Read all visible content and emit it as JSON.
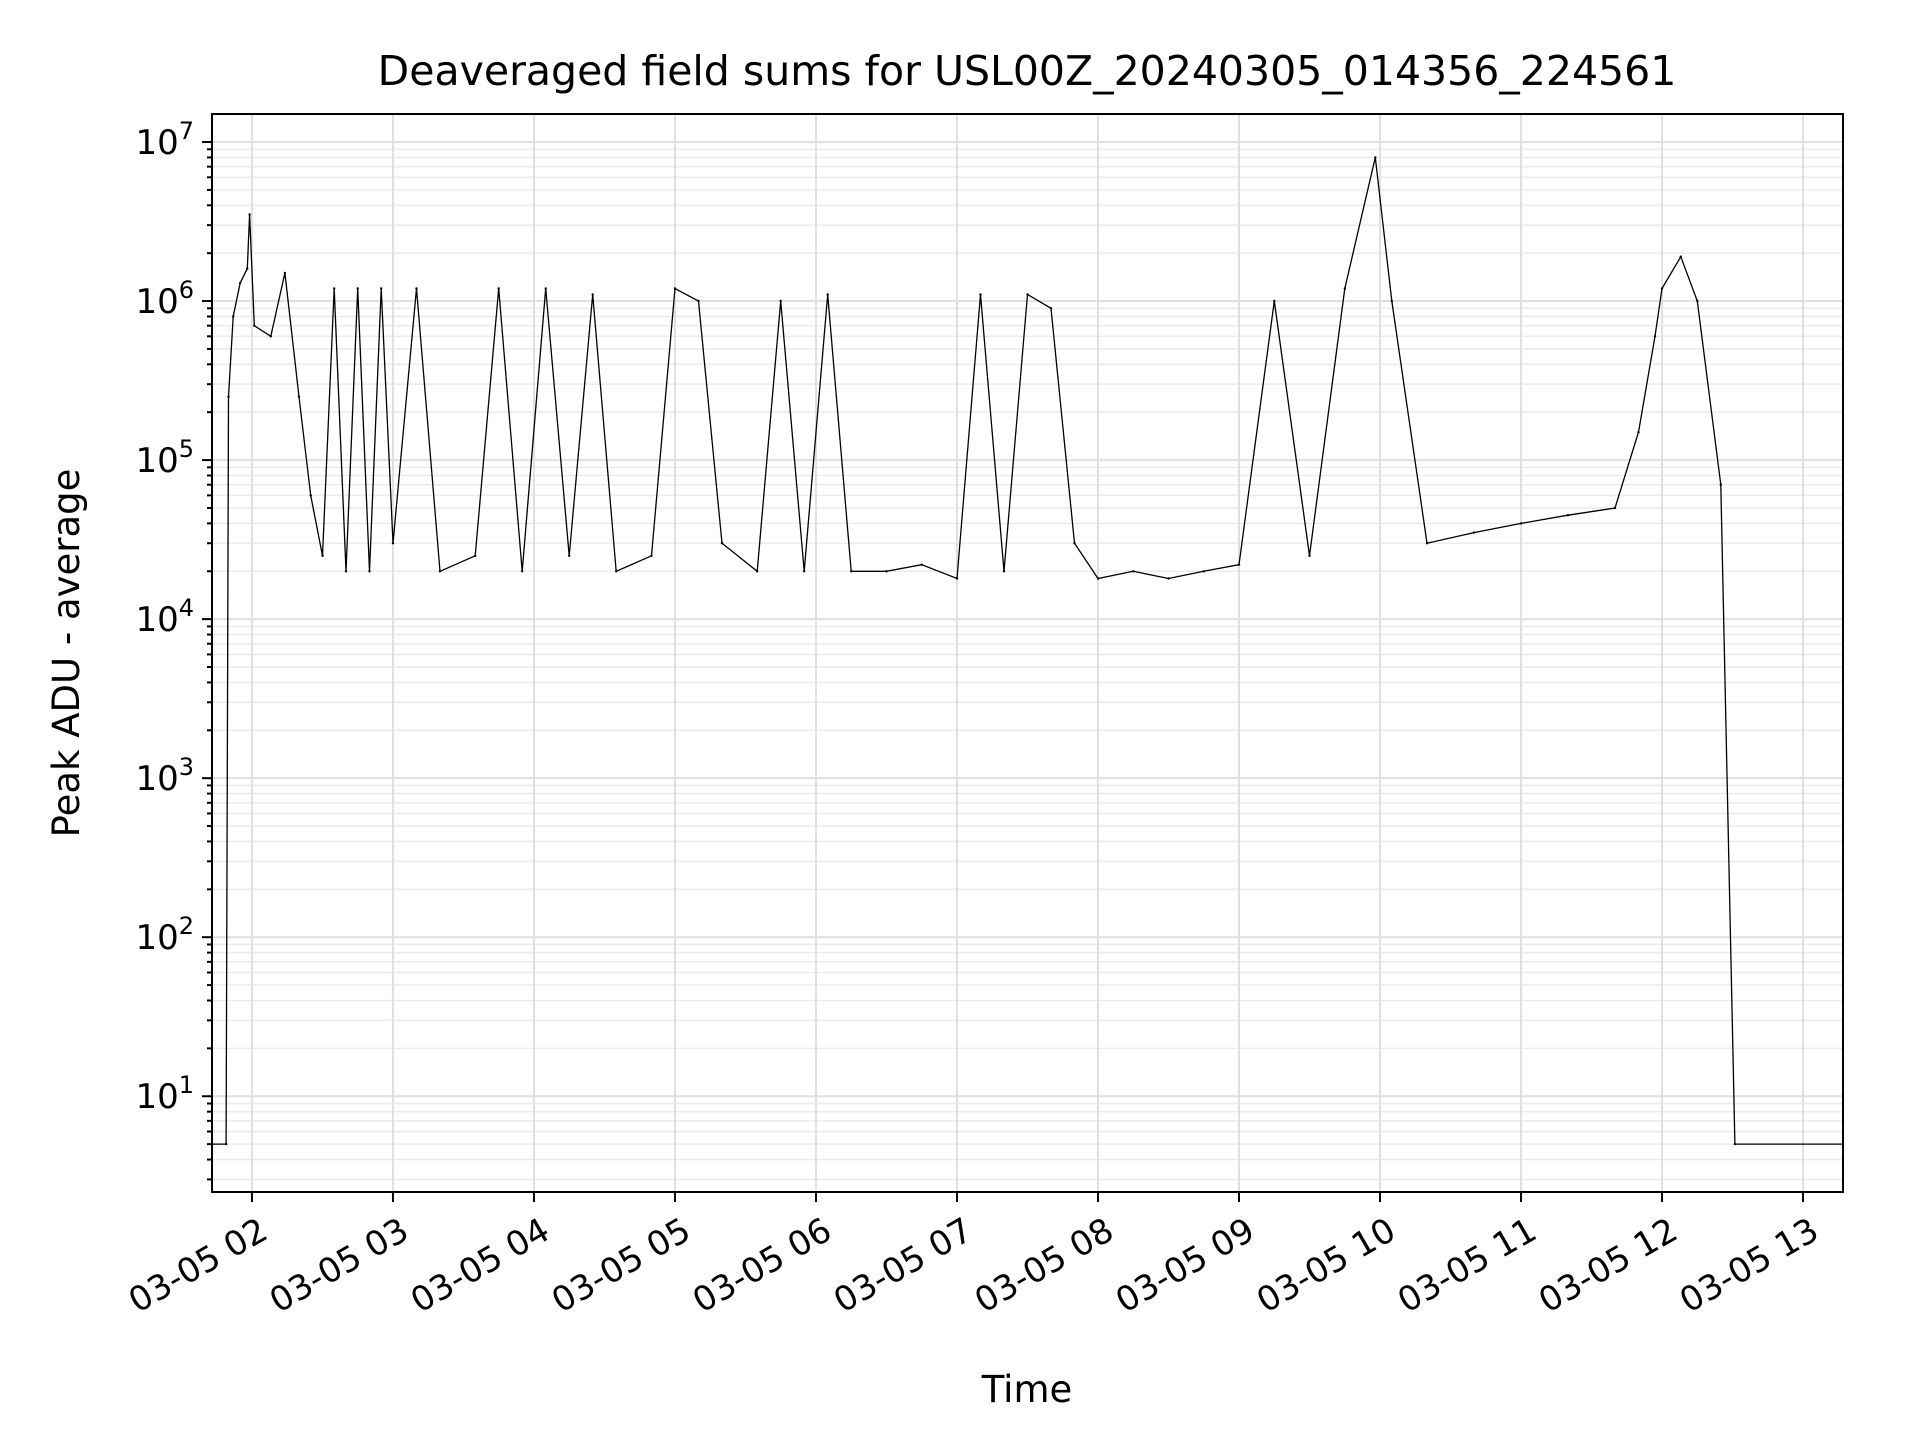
{
  "chart_data": {
    "type": "line",
    "title": "Deaveraged field sums for USL00Z_20240305_014356_224561",
    "xlabel": "Time",
    "ylabel": "Peak ADU - average",
    "yscale": "log",
    "ylim": [
      2.5,
      15000000
    ],
    "xlim": [
      "2024-03-05 01:43",
      "2024-03-05 13:17"
    ],
    "grid": "both (major and minor)",
    "line_color": "#000000",
    "x_ticks": [
      {
        "value": "2024-03-05 02:00",
        "label": "03-05 02"
      },
      {
        "value": "2024-03-05 03:00",
        "label": "03-05 03"
      },
      {
        "value": "2024-03-05 04:00",
        "label": "03-05 04"
      },
      {
        "value": "2024-03-05 05:00",
        "label": "03-05 05"
      },
      {
        "value": "2024-03-05 06:00",
        "label": "03-05 06"
      },
      {
        "value": "2024-03-05 07:00",
        "label": "03-05 07"
      },
      {
        "value": "2024-03-05 08:00",
        "label": "03-05 08"
      },
      {
        "value": "2024-03-05 09:00",
        "label": "03-05 09"
      },
      {
        "value": "2024-03-05 10:00",
        "label": "03-05 10"
      },
      {
        "value": "2024-03-05 11:00",
        "label": "03-05 11"
      },
      {
        "value": "2024-03-05 12:00",
        "label": "03-05 12"
      },
      {
        "value": "2024-03-05 13:00",
        "label": "03-05 13"
      }
    ],
    "y_ticks": [
      {
        "value": 10,
        "base": "10",
        "exp": "1"
      },
      {
        "value": 100,
        "base": "10",
        "exp": "2"
      },
      {
        "value": 1000,
        "base": "10",
        "exp": "3"
      },
      {
        "value": 10000,
        "base": "10",
        "exp": "4"
      },
      {
        "value": 100000,
        "base": "10",
        "exp": "5"
      },
      {
        "value": 1000000,
        "base": "10",
        "exp": "6"
      },
      {
        "value": 10000000,
        "base": "10",
        "exp": "7"
      }
    ],
    "series": [
      {
        "points": [
          [
            "2024-03-05 01:43",
            5
          ],
          [
            "2024-03-05 01:49",
            5
          ],
          [
            "2024-03-05 01:50",
            250000
          ],
          [
            "2024-03-05 01:52",
            800000
          ],
          [
            "2024-03-05 01:55",
            1300000
          ],
          [
            "2024-03-05 01:58",
            1600000
          ],
          [
            "2024-03-05 01:59",
            3500000
          ],
          [
            "2024-03-05 02:01",
            700000
          ],
          [
            "2024-03-05 02:08",
            600000
          ],
          [
            "2024-03-05 02:14",
            1500000
          ],
          [
            "2024-03-05 02:20",
            250000
          ],
          [
            "2024-03-05 02:25",
            60000
          ],
          [
            "2024-03-05 02:30",
            25000
          ],
          [
            "2024-03-05 02:35",
            1200000
          ],
          [
            "2024-03-05 02:40",
            20000
          ],
          [
            "2024-03-05 02:45",
            1200000
          ],
          [
            "2024-03-05 02:50",
            20000
          ],
          [
            "2024-03-05 02:55",
            1200000
          ],
          [
            "2024-03-05 03:00",
            30000
          ],
          [
            "2024-03-05 03:10",
            1200000
          ],
          [
            "2024-03-05 03:20",
            20000
          ],
          [
            "2024-03-05 03:35",
            25000
          ],
          [
            "2024-03-05 03:45",
            1200000
          ],
          [
            "2024-03-05 03:55",
            20000
          ],
          [
            "2024-03-05 04:05",
            1200000
          ],
          [
            "2024-03-05 04:15",
            25000
          ],
          [
            "2024-03-05 04:25",
            1100000
          ],
          [
            "2024-03-05 04:35",
            20000
          ],
          [
            "2024-03-05 04:50",
            25000
          ],
          [
            "2024-03-05 05:00",
            1200000
          ],
          [
            "2024-03-05 05:10",
            1000000
          ],
          [
            "2024-03-05 05:20",
            30000
          ],
          [
            "2024-03-05 05:35",
            20000
          ],
          [
            "2024-03-05 05:45",
            1000000
          ],
          [
            "2024-03-05 05:55",
            20000
          ],
          [
            "2024-03-05 06:05",
            1100000
          ],
          [
            "2024-03-05 06:15",
            20000
          ],
          [
            "2024-03-05 06:30",
            20000
          ],
          [
            "2024-03-05 06:45",
            22000
          ],
          [
            "2024-03-05 07:00",
            18000
          ],
          [
            "2024-03-05 07:10",
            1100000
          ],
          [
            "2024-03-05 07:20",
            20000
          ],
          [
            "2024-03-05 07:30",
            1100000
          ],
          [
            "2024-03-05 07:40",
            900000
          ],
          [
            "2024-03-05 07:50",
            30000
          ],
          [
            "2024-03-05 08:00",
            18000
          ],
          [
            "2024-03-05 08:15",
            20000
          ],
          [
            "2024-03-05 08:30",
            18000
          ],
          [
            "2024-03-05 08:45",
            20000
          ],
          [
            "2024-03-05 09:00",
            22000
          ],
          [
            "2024-03-05 09:15",
            1000000
          ],
          [
            "2024-03-05 09:30",
            25000
          ],
          [
            "2024-03-05 09:45",
            1200000
          ],
          [
            "2024-03-05 09:58",
            8000000
          ],
          [
            "2024-03-05 10:05",
            1000000
          ],
          [
            "2024-03-05 10:20",
            30000
          ],
          [
            "2024-03-05 10:40",
            35000
          ],
          [
            "2024-03-05 11:00",
            40000
          ],
          [
            "2024-03-05 11:20",
            45000
          ],
          [
            "2024-03-05 11:40",
            50000
          ],
          [
            "2024-03-05 11:50",
            150000
          ],
          [
            "2024-03-05 11:57",
            600000
          ],
          [
            "2024-03-05 12:00",
            1200000
          ],
          [
            "2024-03-05 12:08",
            1900000
          ],
          [
            "2024-03-05 12:15",
            1000000
          ],
          [
            "2024-03-05 12:25",
            70000
          ],
          [
            "2024-03-05 12:31",
            5
          ],
          [
            "2024-03-05 13:17",
            5
          ]
        ]
      }
    ]
  }
}
